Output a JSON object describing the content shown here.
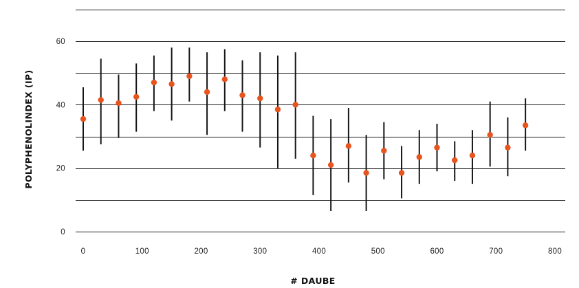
{
  "chart_data": {
    "type": "scatter",
    "title": "",
    "xlabel": "# DAUBE",
    "ylabel": "POLYPHENOLINDEX (IP)",
    "xlim": [
      0,
      800
    ],
    "ylim": [
      0,
      60
    ],
    "xticks": [
      "0",
      "100",
      "200",
      "300",
      "400",
      "500",
      "600",
      "700",
      "800"
    ],
    "yticks": [
      "0",
      "20",
      "40",
      "60"
    ],
    "x_tick_values": [
      0,
      100,
      200,
      300,
      400,
      500,
      600,
      700,
      800
    ],
    "y_tick_values": [
      0,
      20,
      40,
      60
    ],
    "grid_values": [
      0,
      10,
      20,
      30,
      40,
      50,
      60,
      70
    ],
    "grid": true,
    "legend": "none",
    "point_color": "#e8541e",
    "bar_color": "#151515",
    "series": [
      {
        "points": [
          {
            "x": 0,
            "y": 35.5,
            "low": 25.5,
            "high": 45.5
          },
          {
            "x": 30,
            "y": 41.5,
            "low": 27.5,
            "high": 54.5
          },
          {
            "x": 60,
            "y": 40.5,
            "low": 29.5,
            "high": 49.5
          },
          {
            "x": 90,
            "y": 42.5,
            "low": 31.5,
            "high": 53.0
          },
          {
            "x": 120,
            "y": 47.0,
            "low": 38.0,
            "high": 55.5
          },
          {
            "x": 150,
            "y": 46.5,
            "low": 35.0,
            "high": 58.0
          },
          {
            "x": 180,
            "y": 49.0,
            "low": 41.0,
            "high": 58.0
          },
          {
            "x": 210,
            "y": 44.0,
            "low": 30.5,
            "high": 56.5
          },
          {
            "x": 240,
            "y": 48.0,
            "low": 38.0,
            "high": 57.5
          },
          {
            "x": 270,
            "y": 43.0,
            "low": 31.5,
            "high": 54.0
          },
          {
            "x": 300,
            "y": 42.0,
            "low": 26.5,
            "high": 56.5
          },
          {
            "x": 330,
            "y": 38.5,
            "low": 20.0,
            "high": 55.5
          },
          {
            "x": 360,
            "y": 40.0,
            "low": 23.0,
            "high": 56.5
          },
          {
            "x": 390,
            "y": 24.0,
            "low": 11.5,
            "high": 36.5
          },
          {
            "x": 420,
            "y": 21.0,
            "low": 6.5,
            "high": 35.5
          },
          {
            "x": 450,
            "y": 27.0,
            "low": 15.5,
            "high": 39.0
          },
          {
            "x": 480,
            "y": 18.5,
            "low": 6.5,
            "high": 30.5
          },
          {
            "x": 510,
            "y": 25.5,
            "low": 16.5,
            "high": 34.5
          },
          {
            "x": 540,
            "y": 18.5,
            "low": 10.5,
            "high": 27.0
          },
          {
            "x": 570,
            "y": 23.5,
            "low": 15.0,
            "high": 32.0
          },
          {
            "x": 600,
            "y": 26.5,
            "low": 19.0,
            "high": 34.0
          },
          {
            "x": 630,
            "y": 22.5,
            "low": 16.0,
            "high": 28.5
          },
          {
            "x": 660,
            "y": 24.0,
            "low": 15.0,
            "high": 32.0
          },
          {
            "x": 690,
            "y": 30.5,
            "low": 20.5,
            "high": 41.0
          },
          {
            "x": 720,
            "y": 26.5,
            "low": 17.5,
            "high": 36.0
          },
          {
            "x": 750,
            "y": 33.5,
            "low": 25.5,
            "high": 42.0
          }
        ]
      }
    ]
  }
}
